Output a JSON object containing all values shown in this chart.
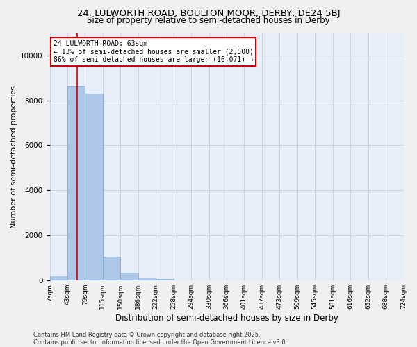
{
  "title_line1": "24, LULWORTH ROAD, BOULTON MOOR, DERBY, DE24 5BJ",
  "title_line2": "Size of property relative to semi-detached houses in Derby",
  "xlabel": "Distribution of semi-detached houses by size in Derby",
  "ylabel": "Number of semi-detached properties",
  "bin_labels": [
    "7sqm",
    "43sqm",
    "79sqm",
    "115sqm",
    "150sqm",
    "186sqm",
    "222sqm",
    "258sqm",
    "294sqm",
    "330sqm",
    "366sqm",
    "401sqm",
    "437sqm",
    "473sqm",
    "509sqm",
    "545sqm",
    "581sqm",
    "616sqm",
    "652sqm",
    "688sqm",
    "724sqm"
  ],
  "bar_values": [
    200,
    8650,
    8300,
    1050,
    330,
    110,
    60,
    0,
    0,
    0,
    0,
    0,
    0,
    0,
    0,
    0,
    0,
    0,
    0,
    0
  ],
  "bar_color": "#aec6e8",
  "bar_edge_color": "#7aa8cc",
  "annotation_title": "24 LULWORTH ROAD: 63sqm",
  "annotation_line1": "← 13% of semi-detached houses are smaller (2,500)",
  "annotation_line2": "86% of semi-detached houses are larger (16,071) →",
  "annotation_box_facecolor": "#ffffff",
  "annotation_box_edgecolor": "#cc0000",
  "vline_color": "#cc0000",
  "ylim_max": 11000,
  "yticks": [
    0,
    2000,
    4000,
    6000,
    8000,
    10000
  ],
  "grid_color": "#c8d4e8",
  "bg_color": "#e8eef8",
  "footer_line1": "Contains HM Land Registry data © Crown copyright and database right 2025.",
  "footer_line2": "Contains public sector information licensed under the Open Government Licence v3.0.",
  "title_fontsize": 9.5,
  "subtitle_fontsize": 8.5,
  "axis_label_fontsize": 8,
  "tick_fontsize": 6.5,
  "annotation_fontsize": 7,
  "footer_fontsize": 6
}
